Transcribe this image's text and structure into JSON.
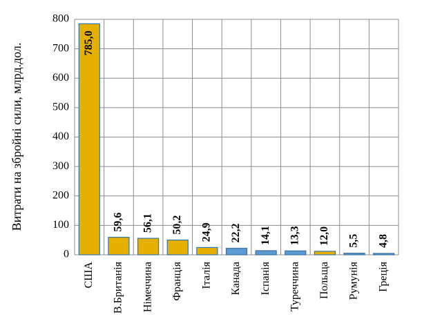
{
  "chart_data": {
    "type": "bar",
    "title": "",
    "xlabel": "",
    "ylabel": "Витрати на збройні сили, млрд.дол.",
    "ylim": [
      0,
      800
    ],
    "yticks": [
      0,
      100,
      200,
      300,
      400,
      500,
      600,
      700,
      800
    ],
    "grid": true,
    "categories": [
      "США",
      "В.Британія",
      "Німеччина",
      "Франція",
      "Італія",
      "Канада",
      "Іспанія",
      "Туреччина",
      "Польща",
      "Румунія",
      "Греція"
    ],
    "values": [
      785.0,
      59.6,
      56.1,
      50.2,
      24.9,
      22.2,
      14.1,
      13.3,
      12.0,
      5.5,
      4.8
    ],
    "value_labels": [
      "785,0",
      "59,6",
      "56,1",
      "50,2",
      "24,9",
      "22,2",
      "14,1",
      "13,3",
      "12,0",
      "5,5",
      "4,8"
    ],
    "bar_colors": [
      "#E6B000",
      "#E6B000",
      "#E6B000",
      "#E6B000",
      "#E6B000",
      "#5B9BD5",
      "#5B9BD5",
      "#5B9BD5",
      "#E6B000",
      "#5B9BD5",
      "#5B9BD5"
    ],
    "colors": {
      "gold": "#E6B000",
      "blue": "#5B9BD5",
      "grid": "#8C8C8C"
    }
  }
}
